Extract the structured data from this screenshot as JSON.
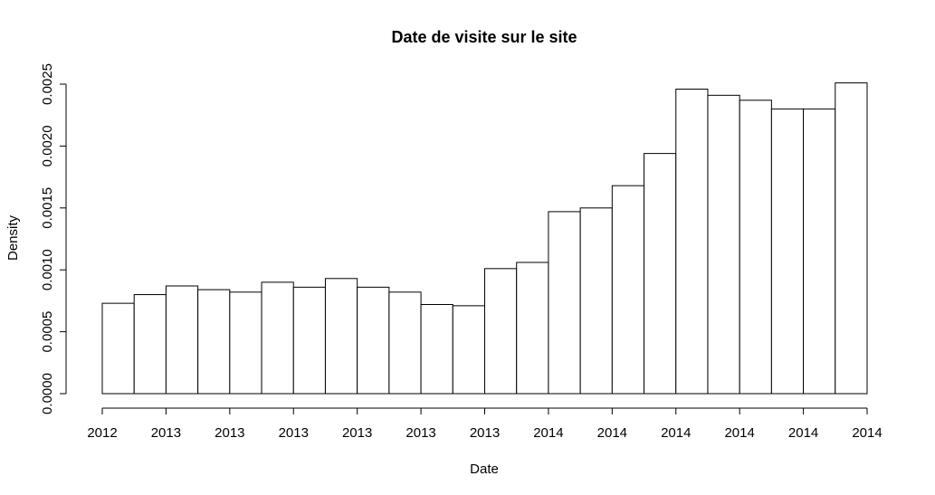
{
  "chart_data": {
    "type": "bar",
    "title": "Date de visite sur le site",
    "xlabel": "Date",
    "ylabel": "Density",
    "ylim": [
      0,
      0.0025
    ],
    "y_ticks": [
      0.0,
      0.0005,
      0.001,
      0.0015,
      0.002,
      0.0025
    ],
    "y_tick_labels": [
      "0.0000",
      "0.0005",
      "0.0010",
      "0.0015",
      "0.0020",
      "0.0025"
    ],
    "x_tick_labels": [
      "2012",
      "2013",
      "2013",
      "2013",
      "2013",
      "2013",
      "2013",
      "2014",
      "2014",
      "2014",
      "2014",
      "2014",
      "2014"
    ],
    "values": [
      0.00073,
      0.0008,
      0.00087,
      0.00084,
      0.00082,
      0.0009,
      0.00086,
      0.00093,
      0.00086,
      0.00082,
      0.00072,
      0.00071,
      0.00101,
      0.00106,
      0.00147,
      0.0015,
      0.00168,
      0.00194,
      0.00246,
      0.00241,
      0.00237,
      0.0023,
      0.0023,
      0.00251
    ],
    "bar_fill": "#ffffff",
    "bar_stroke": "#000000",
    "grid": false
  }
}
